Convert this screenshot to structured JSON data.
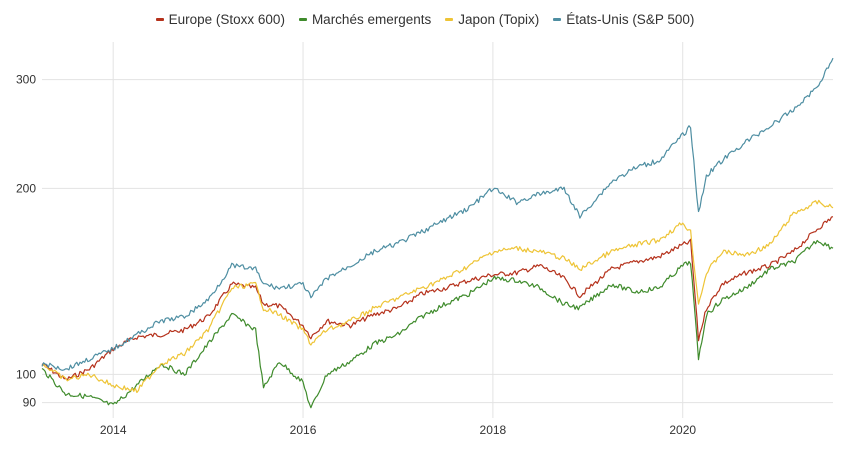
{
  "chart_data": {
    "type": "line",
    "title": "",
    "xlabel": "",
    "ylabel": "",
    "y_scale": "log",
    "ylim": [
      85,
      335
    ],
    "xlim": [
      "2013-04",
      "2021-08"
    ],
    "x_ticks": [
      "2014",
      "2016",
      "2018",
      "2020"
    ],
    "y_ticks": [
      90,
      100,
      200,
      300
    ],
    "grid": true,
    "legend_position": "top-center",
    "x": [
      "2013-04",
      "2013-07",
      "2013-10",
      "2014-01",
      "2014-04",
      "2014-07",
      "2014-10",
      "2015-01",
      "2015-04",
      "2015-07",
      "2015-08",
      "2015-10",
      "2016-01",
      "2016-02",
      "2016-04",
      "2016-07",
      "2016-10",
      "2017-01",
      "2017-04",
      "2017-07",
      "2017-10",
      "2018-01",
      "2018-04",
      "2018-07",
      "2018-10",
      "2018-12",
      "2019-04",
      "2019-07",
      "2019-10",
      "2020-01",
      "2020-02",
      "2020-03",
      "2020-04",
      "2020-06",
      "2020-09",
      "2020-12",
      "2021-03",
      "2021-06",
      "2021-08"
    ],
    "series": [
      {
        "name": "Europe (Stoxx 600)",
        "color": "#b5311b",
        "values": [
          104,
          98,
          102,
          110,
          115,
          116,
          118,
          124,
          140,
          138,
          130,
          129,
          120,
          115,
          122,
          120,
          125,
          128,
          135,
          138,
          142,
          145,
          146,
          150,
          143,
          134,
          148,
          152,
          155,
          162,
          164,
          114,
          128,
          140,
          146,
          150,
          158,
          172,
          180
        ]
      },
      {
        "name": "Marchés emergents",
        "color": "#3f8b2c",
        "values": [
          102,
          93,
          92,
          89,
          96,
          104,
          100,
          112,
          125,
          118,
          95,
          105,
          97,
          88,
          100,
          105,
          112,
          116,
          124,
          130,
          135,
          143,
          142,
          138,
          130,
          128,
          140,
          136,
          138,
          150,
          152,
          106,
          125,
          132,
          138,
          148,
          152,
          165,
          160
        ]
      },
      {
        "name": "Japon (Topix)",
        "color": "#eec436",
        "values": [
          104,
          98,
          100,
          96,
          94,
          104,
          108,
          118,
          138,
          140,
          128,
          125,
          118,
          112,
          118,
          122,
          128,
          133,
          138,
          143,
          150,
          158,
          160,
          158,
          154,
          148,
          158,
          162,
          165,
          176,
          170,
          130,
          146,
          158,
          156,
          162,
          182,
          190,
          186
        ]
      },
      {
        "name": "États-Unis (S&P 500)",
        "color": "#4e8ea2",
        "values": [
          104,
          102,
          106,
          110,
          116,
          122,
          124,
          132,
          150,
          148,
          140,
          138,
          140,
          133,
          143,
          150,
          158,
          163,
          170,
          178,
          186,
          200,
          190,
          196,
          200,
          180,
          205,
          216,
          222,
          244,
          252,
          182,
          210,
          222,
          238,
          252,
          268,
          292,
          325
        ]
      }
    ]
  }
}
